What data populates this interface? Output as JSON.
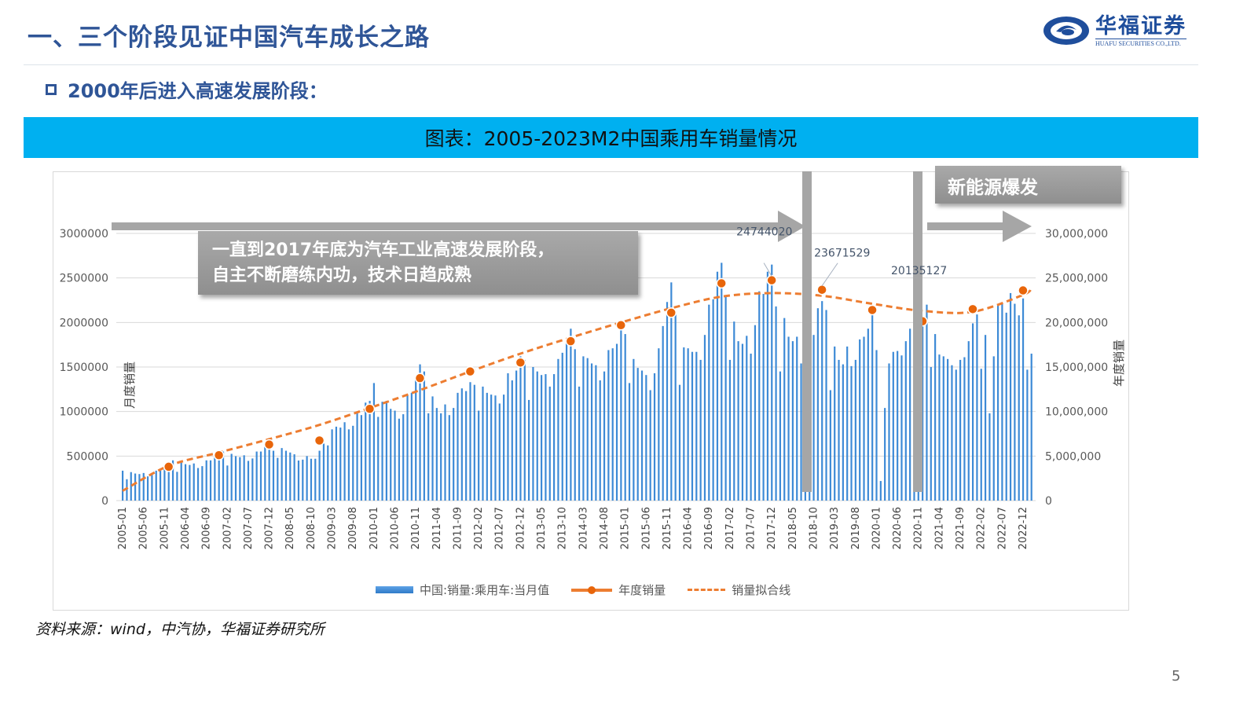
{
  "header": {
    "title": "一、三个阶段见证中国汽车成长之路",
    "subtitle": "2000年后进入高速发展阶段：",
    "logo_cn": "华福证券",
    "logo_en": "HUAFU SECURITIES CO.,LTD."
  },
  "banner": "图表：2005-2023M2中国乘用车销量情况",
  "callout": {
    "line1": "一直到2017年底为汽车工业高速发展阶段，",
    "line2": "自主不断磨练内功，技术日趋成熟"
  },
  "nev_label": "新能源爆发",
  "source": "资料来源：wind，中汽协，华福证券研究所",
  "page_number": "5",
  "colors": {
    "bars": "#3d8ad6",
    "annual": "#e8650a",
    "fit": "#ed7d31",
    "banner": "#00b0f0",
    "title": "#2f5597",
    "arrow": "#a6a6a6"
  },
  "chart_data": {
    "type": "bar+line",
    "left_axis": {
      "label": "月度销量",
      "ylim": [
        0,
        3000000
      ],
      "ticks": [
        "0",
        "500000",
        "1000000",
        "1500000",
        "2000000",
        "2500000",
        "3000000"
      ]
    },
    "right_axis": {
      "label": "年度销量",
      "ylim": [
        0,
        30000000
      ],
      "ticks": [
        "0",
        "5,000,000",
        "10,000,000",
        "15,000,000",
        "20,000,000",
        "25,000,000",
        "30,000,000"
      ]
    },
    "x_start": "2005-01",
    "x_end": "2023-02",
    "x_tick_labels": [
      "2005-01",
      "2005-06",
      "2005-11",
      "2006-04",
      "2006-09",
      "2007-02",
      "2007-07",
      "2007-12",
      "2008-05",
      "2008-10",
      "2009-03",
      "2009-08",
      "2010-01",
      "2010-06",
      "2010-11",
      "2011-04",
      "2011-09",
      "2012-02",
      "2012-07",
      "2012-12",
      "2013-05",
      "2013-10",
      "2014-03",
      "2014-08",
      "2015-01",
      "2015-06",
      "2015-11",
      "2016-04",
      "2016-09",
      "2017-02",
      "2017-07",
      "2017-12",
      "2018-05",
      "2018-10",
      "2019-03",
      "2019-08",
      "2020-01",
      "2020-06",
      "2020-11",
      "2021-04",
      "2021-09",
      "2022-02",
      "2022-07",
      "2022-12"
    ],
    "grid": true,
    "legend_position": "bottom",
    "series": [
      {
        "name": "中国:销量:乘用车:当月值",
        "type": "bar",
        "axis": "left",
        "values": [
          336000,
          240000,
          320000,
          304000,
          298000,
          310000,
          272000,
          288000,
          336000,
          336000,
          368000,
          416000,
          452000,
          323000,
          430000,
          409000,
          400000,
          417000,
          366000,
          387000,
          452000,
          452000,
          495000,
          559000,
          551000,
          394000,
          525000,
          499000,
          488000,
          509000,
          446000,
          473000,
          551000,
          551000,
          604000,
          683000,
          560000,
          480000,
          590000,
          560000,
          540000,
          520000,
          450000,
          460000,
          500000,
          470000,
          470000,
          560000,
          640000,
          620000,
          800000,
          830000,
          820000,
          880000,
          800000,
          840000,
          1000000,
          960000,
          1100000,
          1120000,
          1320000,
          940000,
          1110000,
          1120000,
          1030000,
          1010000,
          920000,
          970000,
          1190000,
          1210000,
          1370000,
          1530000,
          1450000,
          980000,
          1170000,
          1040000,
          980000,
          1080000,
          960000,
          1040000,
          1210000,
          1260000,
          1230000,
          1330000,
          1300000,
          1010000,
          1280000,
          1210000,
          1190000,
          1180000,
          1090000,
          1190000,
          1430000,
          1350000,
          1460000,
          1620000,
          1580000,
          1130000,
          1500000,
          1450000,
          1410000,
          1420000,
          1280000,
          1420000,
          1590000,
          1660000,
          1790000,
          1930000,
          1700000,
          1280000,
          1620000,
          1600000,
          1540000,
          1520000,
          1350000,
          1450000,
          1690000,
          1710000,
          1760000,
          2000000,
          1870000,
          1320000,
          1590000,
          1490000,
          1460000,
          1410000,
          1240000,
          1430000,
          1710000,
          1960000,
          2230000,
          2450000,
          2090000,
          1300000,
          1720000,
          1710000,
          1670000,
          1670000,
          1580000,
          1860000,
          2200000,
          2260000,
          2570000,
          2670000,
          2300000,
          1580000,
          2010000,
          1790000,
          1760000,
          1850000,
          1650000,
          1970000,
          2350000,
          2320000,
          2570000,
          2650000,
          2180000,
          1450000,
          2050000,
          1840000,
          1790000,
          1840000,
          1540000,
          1690000,
          2060000,
          1860000,
          2160000,
          2240000,
          2140000,
          1240000,
          1730000,
          1580000,
          1530000,
          1730000,
          1510000,
          1580000,
          1810000,
          1840000,
          1930000,
          2150000,
          1690000,
          220000,
          1040000,
          1540000,
          1670000,
          1680000,
          1630000,
          1790000,
          1930000,
          1940000,
          1970000,
          2010000,
          2200000,
          1500000,
          1870000,
          1640000,
          1620000,
          1590000,
          1520000,
          1470000,
          1580000,
          1610000,
          1790000,
          1990000,
          2090000,
          1480000,
          1860000,
          980000,
          1620000,
          2210000,
          2220000,
          2110000,
          2330000,
          2210000,
          2080000,
          2270000,
          1470000,
          1650000
        ]
      },
      {
        "name": "年度销量",
        "type": "line-markers",
        "axis": "right",
        "x": [
          "2005-12",
          "2006-12",
          "2007-12",
          "2008-12",
          "2009-12",
          "2010-12",
          "2011-12",
          "2012-12",
          "2013-12",
          "2014-12",
          "2015-12",
          "2016-12",
          "2017-12",
          "2018-12",
          "2019-12",
          "2020-12",
          "2021-12",
          "2022-12"
        ],
        "values": [
          3800000,
          5100000,
          6300000,
          6750000,
          10300000,
          13750000,
          14500000,
          15500000,
          17900000,
          19700000,
          21100000,
          24400000,
          24744020,
          23671529,
          21400000,
          20135127,
          21500000,
          23600000
        ]
      },
      {
        "name": "销量拟合线",
        "type": "dashed-line",
        "axis": "right",
        "x": [
          "2005-01",
          "2005-12",
          "2006-12",
          "2007-12",
          "2008-12",
          "2009-12",
          "2010-12",
          "2011-12",
          "2012-12",
          "2013-12",
          "2014-12",
          "2015-12",
          "2016-12",
          "2017-12",
          "2018-12",
          "2019-12",
          "2020-12",
          "2021-12",
          "2022-12",
          "2023-02"
        ],
        "values": [
          1100000,
          3900000,
          5400000,
          6900000,
          8500000,
          10400000,
          12400000,
          14500000,
          16500000,
          18300000,
          20000000,
          21600000,
          22900000,
          23300000,
          23000000,
          22100000,
          21300000,
          21200000,
          23100000,
          23900000
        ]
      }
    ],
    "annotations": [
      {
        "x": "2017-12",
        "text": "24744020"
      },
      {
        "x": "2018-12",
        "text": "23671529"
      },
      {
        "x": "2020-12",
        "text": "20135127"
      }
    ]
  }
}
